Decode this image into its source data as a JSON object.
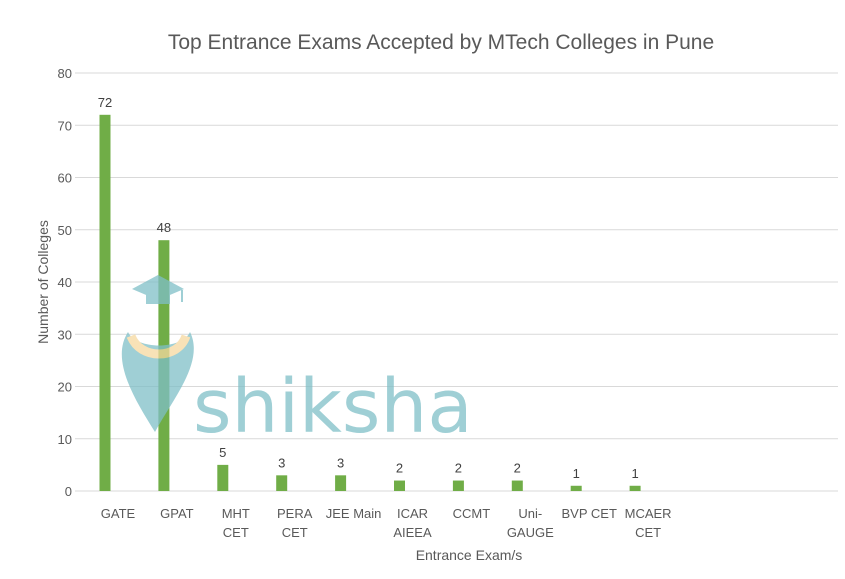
{
  "chart_data": {
    "type": "bar",
    "title": "Top Entrance Exams Accepted by MTech Colleges in Pune",
    "xlabel": "Entrance Exam/s",
    "ylabel": "Number of Colleges",
    "categories": [
      [
        "GATE"
      ],
      [
        "GPAT"
      ],
      [
        "MHT",
        "CET"
      ],
      [
        "PERA",
        "CET"
      ],
      [
        "JEE Main"
      ],
      [
        "ICAR",
        "AIEEA"
      ],
      [
        "CCMT"
      ],
      [
        "Uni-",
        "GAUGE"
      ],
      [
        "BVP CET"
      ],
      [
        "MCAER",
        "CET"
      ]
    ],
    "values": [
      72,
      48,
      5,
      3,
      3,
      2,
      2,
      2,
      1,
      1
    ],
    "ylim": [
      0,
      80
    ],
    "yticks": [
      0,
      10,
      20,
      30,
      40,
      50,
      60,
      70,
      80
    ],
    "grid": true,
    "data_labels": true,
    "bar_color": "#70ad47",
    "grid_color": "#d9d9d9",
    "text_color": "#595959"
  },
  "watermark": {
    "text": "shiksha",
    "color": "#7fbfc7",
    "accent_color": "#f6d9a0",
    "icon": "graduation-cap-icon"
  }
}
